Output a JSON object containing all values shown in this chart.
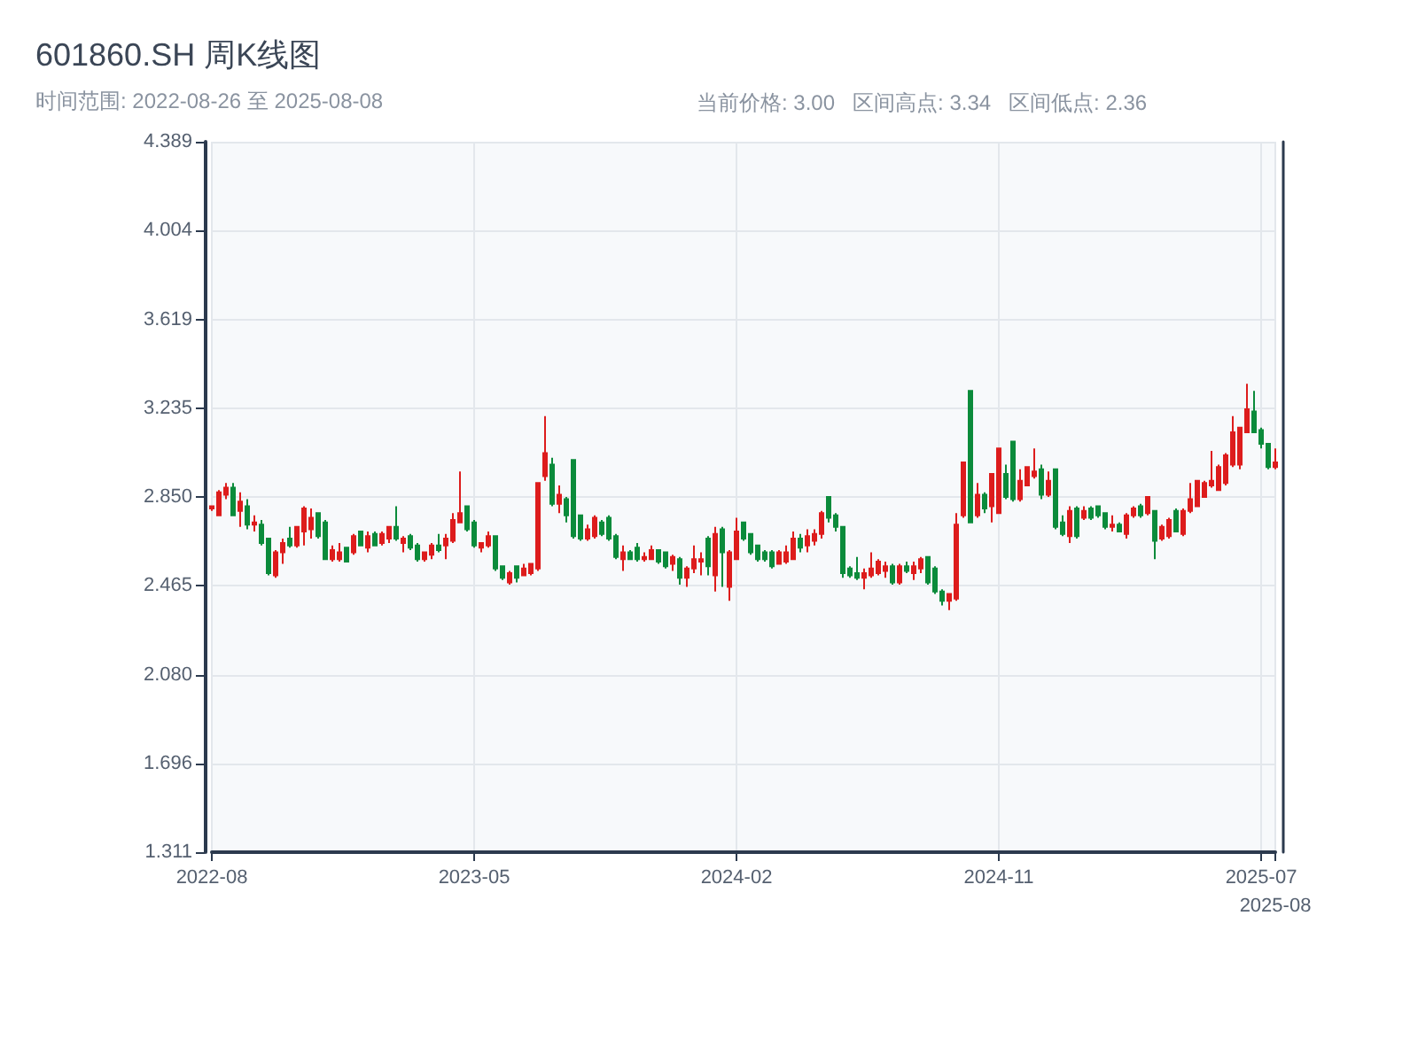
{
  "chart_data": {
    "type": "candlestick",
    "title": "601860.SH 周K线图",
    "subtitle": "时间范围: 2022-08-26 至 2025-08-08",
    "annotations": [
      "当前价格: 3.00",
      "区间高点: 3.34",
      "区间低点: 2.36"
    ],
    "categories": [
      "2022-08",
      null,
      null,
      null,
      null,
      null,
      null,
      null,
      null,
      null,
      null,
      null,
      null,
      null,
      null,
      null,
      null,
      null,
      null,
      null,
      null,
      null,
      null,
      null,
      null,
      null,
      null,
      null,
      null,
      null,
      null,
      null,
      null,
      null,
      null,
      null,
      null,
      "2023-05",
      null,
      null,
      null,
      null,
      null,
      null,
      null,
      null,
      null,
      null,
      null,
      null,
      null,
      null,
      null,
      null,
      null,
      null,
      null,
      null,
      null,
      null,
      null,
      null,
      null,
      null,
      null,
      null,
      null,
      null,
      null,
      null,
      null,
      null,
      null,
      null,
      "2024-02",
      null,
      null,
      null,
      null,
      null,
      null,
      null,
      null,
      null,
      null,
      null,
      null,
      null,
      null,
      null,
      null,
      null,
      null,
      null,
      null,
      null,
      null,
      null,
      null,
      null,
      null,
      null,
      null,
      null,
      null,
      null,
      null,
      null,
      null,
      null,
      null,
      "2024-11",
      null,
      null,
      null,
      null,
      null,
      null,
      null,
      null,
      null,
      null,
      null,
      null,
      null,
      null,
      null,
      null,
      null,
      null,
      null,
      null,
      null,
      null,
      null,
      null,
      null,
      null,
      null,
      null,
      null,
      null,
      null,
      null,
      null,
      null,
      null,
      null,
      "2025-07",
      null,
      "2025-08"
    ],
    "ohlc": [
      [
        2.8,
        2.81,
        2.79,
        2.81
      ],
      [
        2.77,
        2.88,
        2.77,
        2.87
      ],
      [
        2.86,
        2.91,
        2.84,
        2.89
      ],
      [
        2.89,
        2.91,
        2.77,
        2.77
      ],
      [
        2.79,
        2.87,
        2.72,
        2.83
      ],
      [
        2.81,
        2.84,
        2.71,
        2.73
      ],
      [
        2.73,
        2.77,
        2.7,
        2.74
      ],
      [
        2.73,
        2.75,
        2.64,
        2.65
      ],
      [
        2.67,
        2.67,
        2.51,
        2.52
      ],
      [
        2.51,
        2.62,
        2.5,
        2.61
      ],
      [
        2.61,
        2.67,
        2.56,
        2.65
      ],
      [
        2.67,
        2.72,
        2.63,
        2.64
      ],
      [
        2.64,
        2.72,
        2.63,
        2.72
      ],
      [
        2.7,
        2.81,
        2.64,
        2.8
      ],
      [
        2.71,
        2.8,
        2.67,
        2.76
      ],
      [
        2.78,
        2.78,
        2.67,
        2.68
      ],
      [
        2.74,
        2.75,
        2.58,
        2.58
      ],
      [
        2.58,
        2.64,
        2.57,
        2.62
      ],
      [
        2.58,
        2.65,
        2.57,
        2.61
      ],
      [
        2.63,
        2.63,
        2.57,
        2.57
      ],
      [
        2.61,
        2.69,
        2.6,
        2.68
      ],
      [
        2.7,
        2.7,
        2.64,
        2.64
      ],
      [
        2.63,
        2.7,
        2.61,
        2.68
      ],
      [
        2.69,
        2.7,
        2.64,
        2.64
      ],
      [
        2.65,
        2.7,
        2.64,
        2.69
      ],
      [
        2.67,
        2.72,
        2.65,
        2.72
      ],
      [
        2.72,
        2.81,
        2.66,
        2.67
      ],
      [
        2.65,
        2.68,
        2.61,
        2.67
      ],
      [
        2.68,
        2.69,
        2.62,
        2.63
      ],
      [
        2.64,
        2.65,
        2.57,
        2.58
      ],
      [
        2.58,
        2.61,
        2.57,
        2.61
      ],
      [
        2.6,
        2.65,
        2.58,
        2.64
      ],
      [
        2.64,
        2.69,
        2.61,
        2.62
      ],
      [
        2.64,
        2.69,
        2.58,
        2.67
      ],
      [
        2.66,
        2.78,
        2.65,
        2.75
      ],
      [
        2.74,
        2.96,
        2.74,
        2.78
      ],
      [
        2.81,
        2.81,
        2.7,
        2.71
      ],
      [
        2.74,
        2.75,
        2.63,
        2.64
      ],
      [
        2.63,
        2.65,
        2.61,
        2.65
      ],
      [
        2.64,
        2.7,
        2.63,
        2.68
      ],
      [
        2.68,
        2.68,
        2.53,
        2.54
      ],
      [
        2.55,
        2.55,
        2.49,
        2.5
      ],
      [
        2.48,
        2.53,
        2.47,
        2.52
      ],
      [
        2.55,
        2.55,
        2.48,
        2.5
      ],
      [
        2.51,
        2.56,
        2.51,
        2.54
      ],
      [
        2.52,
        2.56,
        2.51,
        2.56
      ],
      [
        2.54,
        2.91,
        2.53,
        2.91
      ],
      [
        2.94,
        3.2,
        2.92,
        3.04
      ],
      [
        2.99,
        3.02,
        2.81,
        2.82
      ],
      [
        2.82,
        2.9,
        2.78,
        2.86
      ],
      [
        2.84,
        2.85,
        2.74,
        2.77
      ],
      [
        3.01,
        3.01,
        2.67,
        2.68
      ],
      [
        2.77,
        2.77,
        2.66,
        2.67
      ],
      [
        2.67,
        2.73,
        2.66,
        2.71
      ],
      [
        2.68,
        2.77,
        2.67,
        2.76
      ],
      [
        2.74,
        2.75,
        2.68,
        2.69
      ],
      [
        2.76,
        2.77,
        2.66,
        2.67
      ],
      [
        2.68,
        2.69,
        2.58,
        2.59
      ],
      [
        2.58,
        2.64,
        2.53,
        2.61
      ],
      [
        2.61,
        2.62,
        2.58,
        2.58
      ],
      [
        2.63,
        2.65,
        2.57,
        2.58
      ],
      [
        2.58,
        2.61,
        2.57,
        2.59
      ],
      [
        2.58,
        2.64,
        2.58,
        2.62
      ],
      [
        2.62,
        2.62,
        2.56,
        2.57
      ],
      [
        2.61,
        2.61,
        2.54,
        2.55
      ],
      [
        2.56,
        2.6,
        2.53,
        2.59
      ],
      [
        2.58,
        2.59,
        2.47,
        2.5
      ],
      [
        2.5,
        2.55,
        2.46,
        2.54
      ],
      [
        2.54,
        2.64,
        2.52,
        2.58
      ],
      [
        2.57,
        2.61,
        2.51,
        2.58
      ],
      [
        2.67,
        2.68,
        2.51,
        2.55
      ],
      [
        2.51,
        2.72,
        2.44,
        2.69
      ],
      [
        2.71,
        2.72,
        2.46,
        2.61
      ],
      [
        2.46,
        2.62,
        2.4,
        2.61
      ],
      [
        2.58,
        2.76,
        2.58,
        2.7
      ],
      [
        2.74,
        2.74,
        2.66,
        2.67
      ],
      [
        2.69,
        2.69,
        2.6,
        2.61
      ],
      [
        2.64,
        2.64,
        2.57,
        2.58
      ],
      [
        2.61,
        2.62,
        2.57,
        2.58
      ],
      [
        2.61,
        2.62,
        2.54,
        2.55
      ],
      [
        2.56,
        2.62,
        2.56,
        2.61
      ],
      [
        2.57,
        2.64,
        2.56,
        2.61
      ],
      [
        2.58,
        2.7,
        2.58,
        2.67
      ],
      [
        2.67,
        2.69,
        2.61,
        2.63
      ],
      [
        2.64,
        2.71,
        2.61,
        2.68
      ],
      [
        2.66,
        2.71,
        2.64,
        2.69
      ],
      [
        2.69,
        2.79,
        2.67,
        2.78
      ],
      [
        2.85,
        2.85,
        2.74,
        2.76
      ],
      [
        2.77,
        2.78,
        2.7,
        2.72
      ],
      [
        2.72,
        2.72,
        2.5,
        2.52
      ],
      [
        2.54,
        2.55,
        2.5,
        2.51
      ],
      [
        2.52,
        2.59,
        2.49,
        2.5
      ],
      [
        2.5,
        2.54,
        2.45,
        2.52
      ],
      [
        2.51,
        2.61,
        2.5,
        2.54
      ],
      [
        2.52,
        2.58,
        2.51,
        2.57
      ],
      [
        2.53,
        2.57,
        2.5,
        2.55
      ],
      [
        2.55,
        2.56,
        2.47,
        2.48
      ],
      [
        2.48,
        2.56,
        2.47,
        2.55
      ],
      [
        2.55,
        2.57,
        2.52,
        2.53
      ],
      [
        2.52,
        2.57,
        2.49,
        2.55
      ],
      [
        2.54,
        2.59,
        2.52,
        2.58
      ],
      [
        2.59,
        2.59,
        2.47,
        2.48
      ],
      [
        2.54,
        2.55,
        2.43,
        2.44
      ],
      [
        2.44,
        2.45,
        2.38,
        2.4
      ],
      [
        2.4,
        2.43,
        2.36,
        2.43
      ],
      [
        2.41,
        2.78,
        2.4,
        2.73
      ],
      [
        2.77,
        3.0,
        2.76,
        3.0
      ],
      [
        3.31,
        3.31,
        2.74,
        2.74
      ],
      [
        2.77,
        2.91,
        2.76,
        2.86
      ],
      [
        2.86,
        2.87,
        2.78,
        2.8
      ],
      [
        2.81,
        2.95,
        2.74,
        2.95
      ],
      [
        2.78,
        3.06,
        2.78,
        3.06
      ],
      [
        2.95,
        2.99,
        2.84,
        2.85
      ],
      [
        3.09,
        3.09,
        2.83,
        2.84
      ],
      [
        2.84,
        2.97,
        2.83,
        2.92
      ],
      [
        2.9,
        2.98,
        2.9,
        2.98
      ],
      [
        2.94,
        3.06,
        2.93,
        2.96
      ],
      [
        2.97,
        2.99,
        2.84,
        2.86
      ],
      [
        2.86,
        2.96,
        2.85,
        2.92
      ],
      [
        2.97,
        2.97,
        2.71,
        2.72
      ],
      [
        2.74,
        2.77,
        2.68,
        2.69
      ],
      [
        2.68,
        2.81,
        2.65,
        2.79
      ],
      [
        2.8,
        2.81,
        2.67,
        2.68
      ],
      [
        2.76,
        2.81,
        2.75,
        2.79
      ],
      [
        2.8,
        2.81,
        2.75,
        2.76
      ],
      [
        2.81,
        2.81,
        2.76,
        2.77
      ],
      [
        2.78,
        2.78,
        2.71,
        2.72
      ],
      [
        2.72,
        2.77,
        2.7,
        2.73
      ],
      [
        2.73,
        2.74,
        2.7,
        2.7
      ],
      [
        2.69,
        2.78,
        2.67,
        2.77
      ],
      [
        2.77,
        2.81,
        2.76,
        2.8
      ],
      [
        2.81,
        2.82,
        2.76,
        2.77
      ],
      [
        2.78,
        2.85,
        2.77,
        2.85
      ],
      [
        2.79,
        2.79,
        2.58,
        2.66
      ],
      [
        2.67,
        2.73,
        2.66,
        2.72
      ],
      [
        2.68,
        2.76,
        2.67,
        2.75
      ],
      [
        2.79,
        2.8,
        2.7,
        2.7
      ],
      [
        2.69,
        2.8,
        2.68,
        2.79
      ],
      [
        2.79,
        2.91,
        2.78,
        2.84
      ],
      [
        2.81,
        2.92,
        2.81,
        2.92
      ],
      [
        2.85,
        2.92,
        2.85,
        2.91
      ],
      [
        2.9,
        3.05,
        2.89,
        2.92
      ],
      [
        2.88,
        2.99,
        2.88,
        2.98
      ],
      [
        2.91,
        3.04,
        2.9,
        3.03
      ],
      [
        2.99,
        3.2,
        2.98,
        3.13
      ],
      [
        2.99,
        3.15,
        2.97,
        3.15
      ],
      [
        3.13,
        3.34,
        3.13,
        3.23
      ],
      [
        3.22,
        3.31,
        3.13,
        3.13
      ],
      [
        3.14,
        3.15,
        3.06,
        3.08
      ],
      [
        3.08,
        3.08,
        2.97,
        2.98
      ],
      [
        2.98,
        3.06,
        2.97,
        3.0
      ]
    ],
    "colors": [
      "#dd1c1c",
      "#dd1c1c",
      "#dd1c1c",
      "#0b8b3b",
      "#dd1c1c",
      "#0b8b3b",
      "#dd1c1c",
      "#0b8b3b",
      "#0b8b3b",
      "#dd1c1c",
      "#dd1c1c",
      "#0b8b3b",
      "#dd1c1c",
      "#dd1c1c",
      "#dd1c1c",
      "#0b8b3b",
      "#0b8b3b",
      "#dd1c1c",
      "#dd1c1c",
      "#0b8b3b",
      "#dd1c1c",
      "#0b8b3b",
      "#dd1c1c",
      "#0b8b3b",
      "#dd1c1c",
      "#dd1c1c",
      "#0b8b3b",
      "#dd1c1c",
      "#0b8b3b",
      "#0b8b3b",
      "#dd1c1c",
      "#dd1c1c",
      "#0b8b3b",
      "#dd1c1c",
      "#dd1c1c",
      "#dd1c1c",
      "#0b8b3b",
      "#0b8b3b",
      "#dd1c1c",
      "#dd1c1c",
      "#0b8b3b",
      "#0b8b3b",
      "#dd1c1c",
      "#0b8b3b",
      "#dd1c1c",
      "#dd1c1c",
      "#dd1c1c",
      "#dd1c1c",
      "#0b8b3b",
      "#dd1c1c",
      "#0b8b3b",
      "#0b8b3b",
      "#0b8b3b",
      "#dd1c1c",
      "#dd1c1c",
      "#0b8b3b",
      "#0b8b3b",
      "#0b8b3b",
      "#dd1c1c",
      "#0b8b3b",
      "#0b8b3b",
      "#dd1c1c",
      "#dd1c1c",
      "#0b8b3b",
      "#0b8b3b",
      "#dd1c1c",
      "#0b8b3b",
      "#dd1c1c",
      "#dd1c1c",
      "#dd1c1c",
      "#0b8b3b",
      "#dd1c1c",
      "#0b8b3b",
      "#dd1c1c",
      "#dd1c1c",
      "#0b8b3b",
      "#0b8b3b",
      "#0b8b3b",
      "#0b8b3b",
      "#0b8b3b",
      "#dd1c1c",
      "#dd1c1c",
      "#dd1c1c",
      "#0b8b3b",
      "#dd1c1c",
      "#dd1c1c",
      "#dd1c1c",
      "#0b8b3b",
      "#0b8b3b",
      "#0b8b3b",
      "#0b8b3b",
      "#0b8b3b",
      "#dd1c1c",
      "#dd1c1c",
      "#dd1c1c",
      "#dd1c1c",
      "#0b8b3b",
      "#dd1c1c",
      "#0b8b3b",
      "#dd1c1c",
      "#dd1c1c",
      "#0b8b3b",
      "#0b8b3b",
      "#0b8b3b",
      "#dd1c1c",
      "#dd1c1c",
      "#dd1c1c",
      "#0b8b3b",
      "#dd1c1c",
      "#0b8b3b",
      "#dd1c1c",
      "#dd1c1c",
      "#0b8b3b",
      "#0b8b3b",
      "#dd1c1c",
      "#dd1c1c",
      "#dd1c1c",
      "#0b8b3b",
      "#dd1c1c",
      "#0b8b3b",
      "#0b8b3b",
      "#dd1c1c",
      "#0b8b3b",
      "#dd1c1c",
      "#0b8b3b",
      "#0b8b3b",
      "#0b8b3b",
      "#dd1c1c",
      "#0b8b3b",
      "#dd1c1c",
      "#dd1c1c",
      "#0b8b3b",
      "#dd1c1c",
      "#0b8b3b",
      "#dd1c1c",
      "#dd1c1c",
      "#0b8b3b",
      "#dd1c1c",
      "#dd1c1c",
      "#dd1c1c",
      "#dd1c1c",
      "#dd1c1c",
      "#dd1c1c",
      "#dd1c1c",
      "#dd1c1c",
      "#dd1c1c",
      "#dd1c1c",
      "#0b8b3b",
      "#0b8b3b",
      "#0b8b3b",
      "#dd1c1c"
    ],
    "ylim": [
      1.311,
      4.389
    ],
    "yticks": [
      1.311,
      1.696,
      {
        "value": 2.08,
        "label": "2.080"
      },
      2.465,
      {
        "value": 2.85,
        "label": "2.850"
      },
      3.235,
      3.619,
      4.004,
      4.389
    ],
    "grid": true
  }
}
